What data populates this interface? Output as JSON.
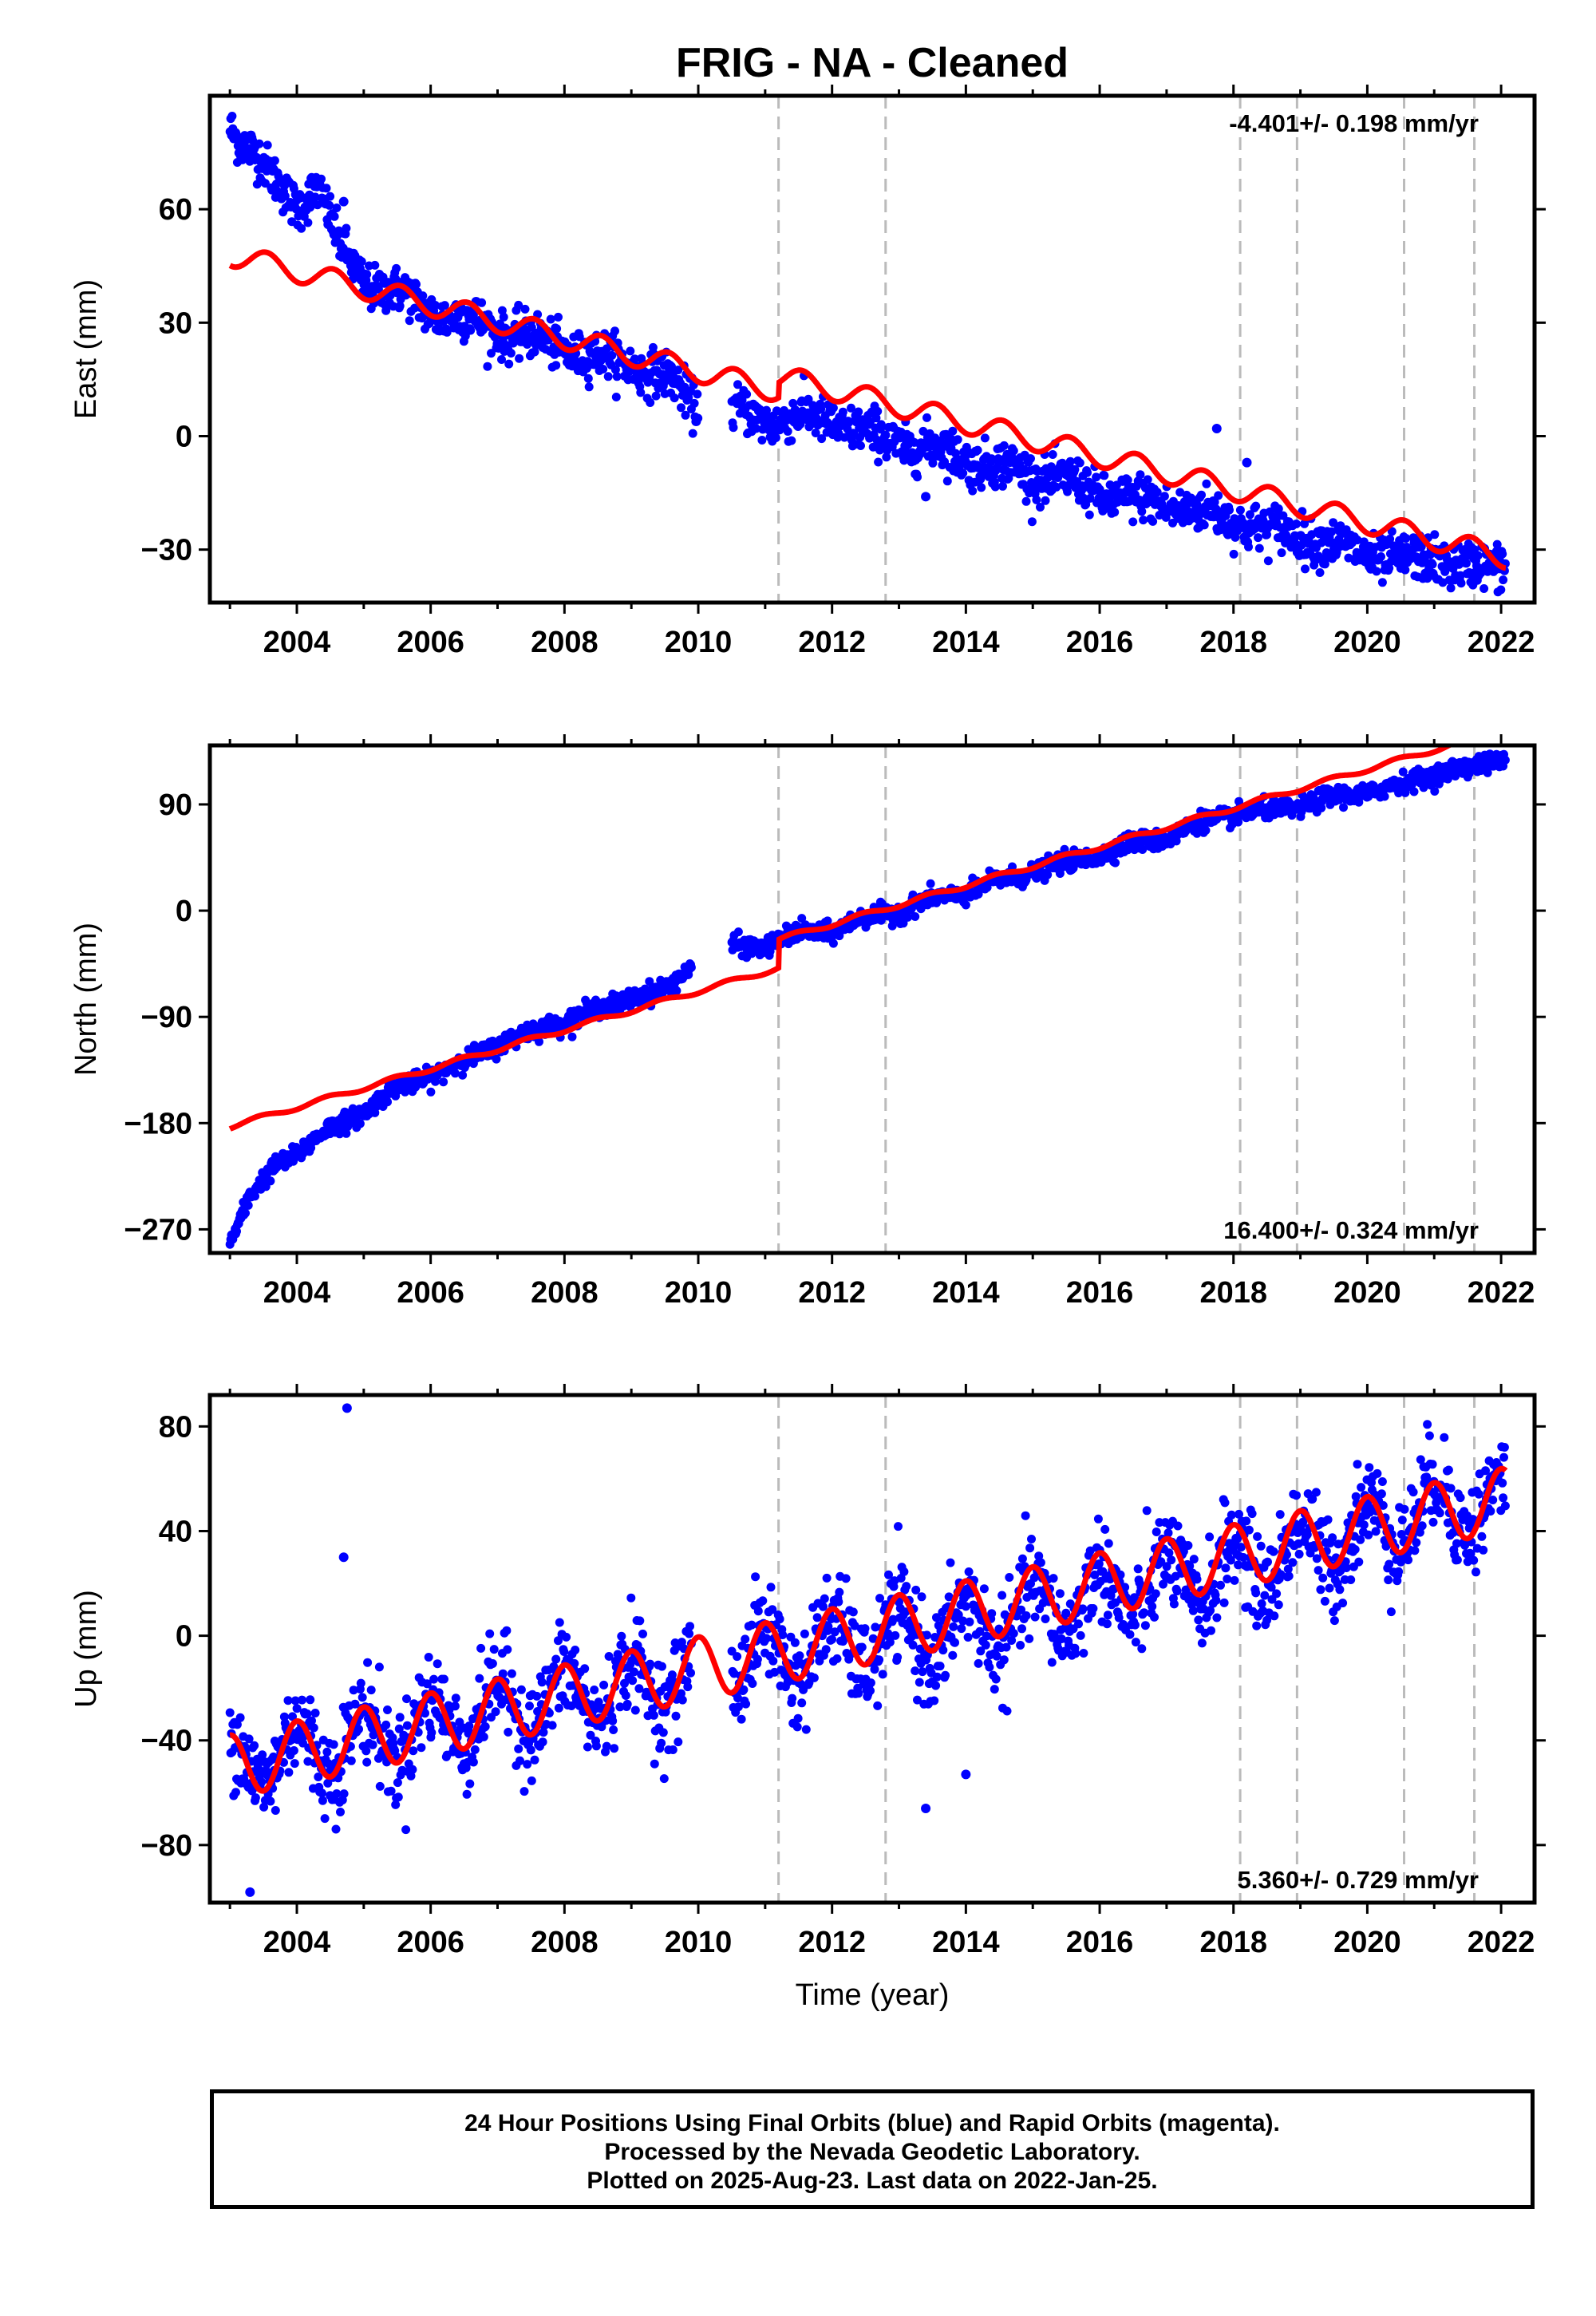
{
  "title": "FRIG  - NA - Cleaned",
  "xlabel": "Time (year)",
  "colors": {
    "final_orbits": "#0000ff",
    "model": "#ff0000",
    "event_lines": "#bbbbbb",
    "frame": "#000000"
  },
  "footer": {
    "line1": "24 Hour Positions Using Final Orbits (blue) and Rapid Orbits (magenta).",
    "line2": "Processed by the Nevada Geodetic Laboratory.",
    "line3": "Plotted on 2025-Aug-23. Last data on 2022-Jan-25."
  },
  "chart_data": [
    {
      "type": "scatter",
      "name": "east",
      "ylabel": "East (mm)",
      "xlim": [
        2002.7,
        2022.5
      ],
      "ylim": [
        -44,
        90
      ],
      "xticks": [
        2004,
        2006,
        2008,
        2010,
        2012,
        2014,
        2016,
        2018,
        2020,
        2022
      ],
      "yticks": [
        -30,
        0,
        30,
        60
      ],
      "rate_text": "-4.401+/- 0.198 mm/yr",
      "rate_position": "top-right",
      "event_lines": [
        2011.2,
        2012.8,
        2018.1,
        2018.95,
        2020.55,
        2021.6
      ],
      "observed_trend": [
        [
          2003.0,
          84
        ],
        [
          2003.3,
          76
        ],
        [
          2003.6,
          67
        ],
        [
          2004.0,
          63
        ],
        [
          2004.3,
          66
        ],
        [
          2004.6,
          50
        ],
        [
          2005.0,
          43
        ],
        [
          2005.5,
          36
        ],
        [
          2006.0,
          35
        ],
        [
          2006.5,
          29
        ],
        [
          2007.0,
          30
        ],
        [
          2007.5,
          24
        ],
        [
          2008.0,
          25
        ],
        [
          2008.5,
          19
        ],
        [
          2009.0,
          21
        ],
        [
          2009.5,
          14
        ],
        [
          2010.5,
          5
        ],
        [
          2011.0,
          6
        ],
        [
          2011.5,
          3
        ],
        [
          2012.0,
          6
        ],
        [
          2012.5,
          -1
        ],
        [
          2013.0,
          0
        ],
        [
          2013.5,
          -5
        ],
        [
          2014.0,
          -4
        ],
        [
          2014.5,
          -10
        ],
        [
          2015.0,
          -8
        ],
        [
          2015.5,
          -14
        ],
        [
          2016.0,
          -13
        ],
        [
          2016.5,
          -19
        ],
        [
          2017.0,
          -16
        ],
        [
          2017.5,
          -22
        ],
        [
          2018.0,
          -20
        ],
        [
          2018.5,
          -27
        ],
        [
          2019.0,
          -24
        ],
        [
          2019.5,
          -31
        ],
        [
          2020.0,
          -29
        ],
        [
          2020.5,
          -35
        ],
        [
          2021.0,
          -30
        ],
        [
          2021.5,
          -37
        ],
        [
          2022.0,
          -32
        ]
      ],
      "observed_noise": 3,
      "outliers": [
        [
          2004.7,
          62
        ],
        [
          2017.75,
          2
        ],
        [
          2018.2,
          -7
        ],
        [
          2013.4,
          -16
        ]
      ],
      "model": {
        "t0": 2003.0,
        "y0": 48,
        "rate": -4.401,
        "annual_amp": 3,
        "annual_phase": 0.3,
        "offsets": [
          [
            2011.2,
            4
          ]
        ]
      },
      "gaps": [
        [
          2010.0,
          2010.5
        ]
      ]
    },
    {
      "type": "scatter",
      "name": "north",
      "ylabel": "North (mm)",
      "xlim": [
        2002.7,
        2022.5
      ],
      "ylim": [
        -290,
        140
      ],
      "xticks": [
        2004,
        2006,
        2008,
        2010,
        2012,
        2014,
        2016,
        2018,
        2020,
        2022
      ],
      "yticks": [
        -270,
        -180,
        -90,
        0,
        90
      ],
      "rate_text": "16.400+/- 0.324 mm/yr",
      "rate_position": "bottom-right",
      "event_lines": [
        2011.2,
        2012.8,
        2018.1,
        2018.95,
        2020.55,
        2021.6
      ],
      "observed_trend": [
        [
          2003.0,
          -280
        ],
        [
          2003.3,
          -243
        ],
        [
          2003.7,
          -215
        ],
        [
          2004.0,
          -205
        ],
        [
          2004.5,
          -185
        ],
        [
          2005.0,
          -170
        ],
        [
          2005.5,
          -150
        ],
        [
          2006.0,
          -140
        ],
        [
          2006.5,
          -128
        ],
        [
          2007.0,
          -113
        ],
        [
          2007.5,
          -103
        ],
        [
          2008.0,
          -93
        ],
        [
          2008.5,
          -84
        ],
        [
          2009.0,
          -73
        ],
        [
          2009.5,
          -68
        ],
        [
          2009.8,
          -52
        ],
        [
          2010.5,
          -30
        ],
        [
          2011.0,
          -30
        ],
        [
          2011.5,
          -19
        ],
        [
          2012.0,
          -17
        ],
        [
          2012.5,
          -6
        ],
        [
          2013.0,
          0
        ],
        [
          2013.5,
          10
        ],
        [
          2014.0,
          15
        ],
        [
          2014.5,
          25
        ],
        [
          2015.0,
          33
        ],
        [
          2015.5,
          40
        ],
        [
          2016.0,
          48
        ],
        [
          2016.5,
          57
        ],
        [
          2017.0,
          62
        ],
        [
          2017.5,
          74
        ],
        [
          2018.0,
          82
        ],
        [
          2018.5,
          84
        ],
        [
          2019.0,
          89
        ],
        [
          2019.5,
          96
        ],
        [
          2020.0,
          100
        ],
        [
          2020.5,
          107
        ],
        [
          2021.0,
          116
        ],
        [
          2021.5,
          121
        ],
        [
          2022.0,
          128
        ]
      ],
      "observed_noise": 4,
      "outliers": [],
      "model": {
        "t0": 2003.0,
        "y0": -183,
        "rate": 16.4,
        "annual_amp": 2,
        "annual_phase": 0.2,
        "offsets": [
          [
            2011.2,
            24
          ]
        ]
      },
      "gaps": [
        [
          2009.9,
          2010.5
        ]
      ]
    },
    {
      "type": "scatter",
      "name": "up",
      "ylabel": "Up (mm)",
      "xlim": [
        2002.7,
        2022.5
      ],
      "ylim": [
        -102,
        92
      ],
      "xticks": [
        2004,
        2006,
        2008,
        2010,
        2012,
        2014,
        2016,
        2018,
        2020,
        2022
      ],
      "yticks": [
        -80,
        -40,
        0,
        40,
        80
      ],
      "rate_text": "5.360+/- 0.729 mm/yr",
      "rate_position": "bottom-right",
      "event_lines": [
        2011.2,
        2012.8,
        2018.1,
        2018.95,
        2020.55,
        2021.6
      ],
      "observed_trend": [
        [
          2003.0,
          -48
        ],
        [
          2005.0,
          -40
        ],
        [
          2007.0,
          -28
        ],
        [
          2009.0,
          -20
        ],
        [
          2010.5,
          -10
        ],
        [
          2012.0,
          -4
        ],
        [
          2014.0,
          2
        ],
        [
          2016.0,
          15
        ],
        [
          2018.0,
          25
        ],
        [
          2020.0,
          40
        ],
        [
          2021.0,
          50
        ],
        [
          2022.0,
          50
        ]
      ],
      "observed_noise": 9,
      "outliers": [
        [
          2004.75,
          87
        ],
        [
          2004.7,
          30
        ],
        [
          2013.4,
          -66
        ],
        [
          2014.0,
          -53
        ],
        [
          2003.3,
          -98
        ]
      ],
      "model": {
        "t0": 2003.0,
        "y0": -50,
        "rate": 5.36,
        "annual_amp": 12,
        "annual_phase": 0.75,
        "offsets": []
      },
      "gaps": [
        [
          2009.9,
          2010.5
        ]
      ]
    }
  ]
}
